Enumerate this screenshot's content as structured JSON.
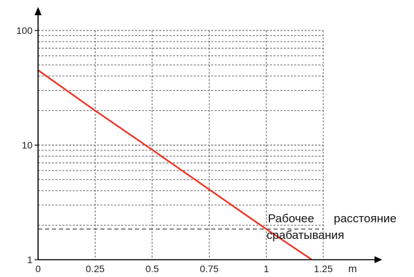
{
  "chart_data": {
    "type": "line",
    "xlabel": "m",
    "ylabel": "",
    "x_ticks": [
      "0",
      "0.25",
      "0.5",
      "0.75",
      "1",
      "1.25"
    ],
    "y_ticks": [
      "1",
      "10",
      "100"
    ],
    "y_scale": "log",
    "xlim": [
      0,
      1.25
    ],
    "ylim": [
      1,
      100
    ],
    "grid": true,
    "series": [
      {
        "x": [
          0,
          0.25,
          0.5,
          0.75,
          1,
          1.2
        ],
        "y": [
          45,
          20,
          9.1,
          4.1,
          1.85,
          1
        ]
      }
    ],
    "reference_line": {
      "y": 1.85
    },
    "annotation_line1": "Рабочее      расстояние",
    "annotation_line2": "срабатывания",
    "colors": {
      "series": "#e8392b",
      "grid": "#555555",
      "axis": "#000000"
    }
  }
}
